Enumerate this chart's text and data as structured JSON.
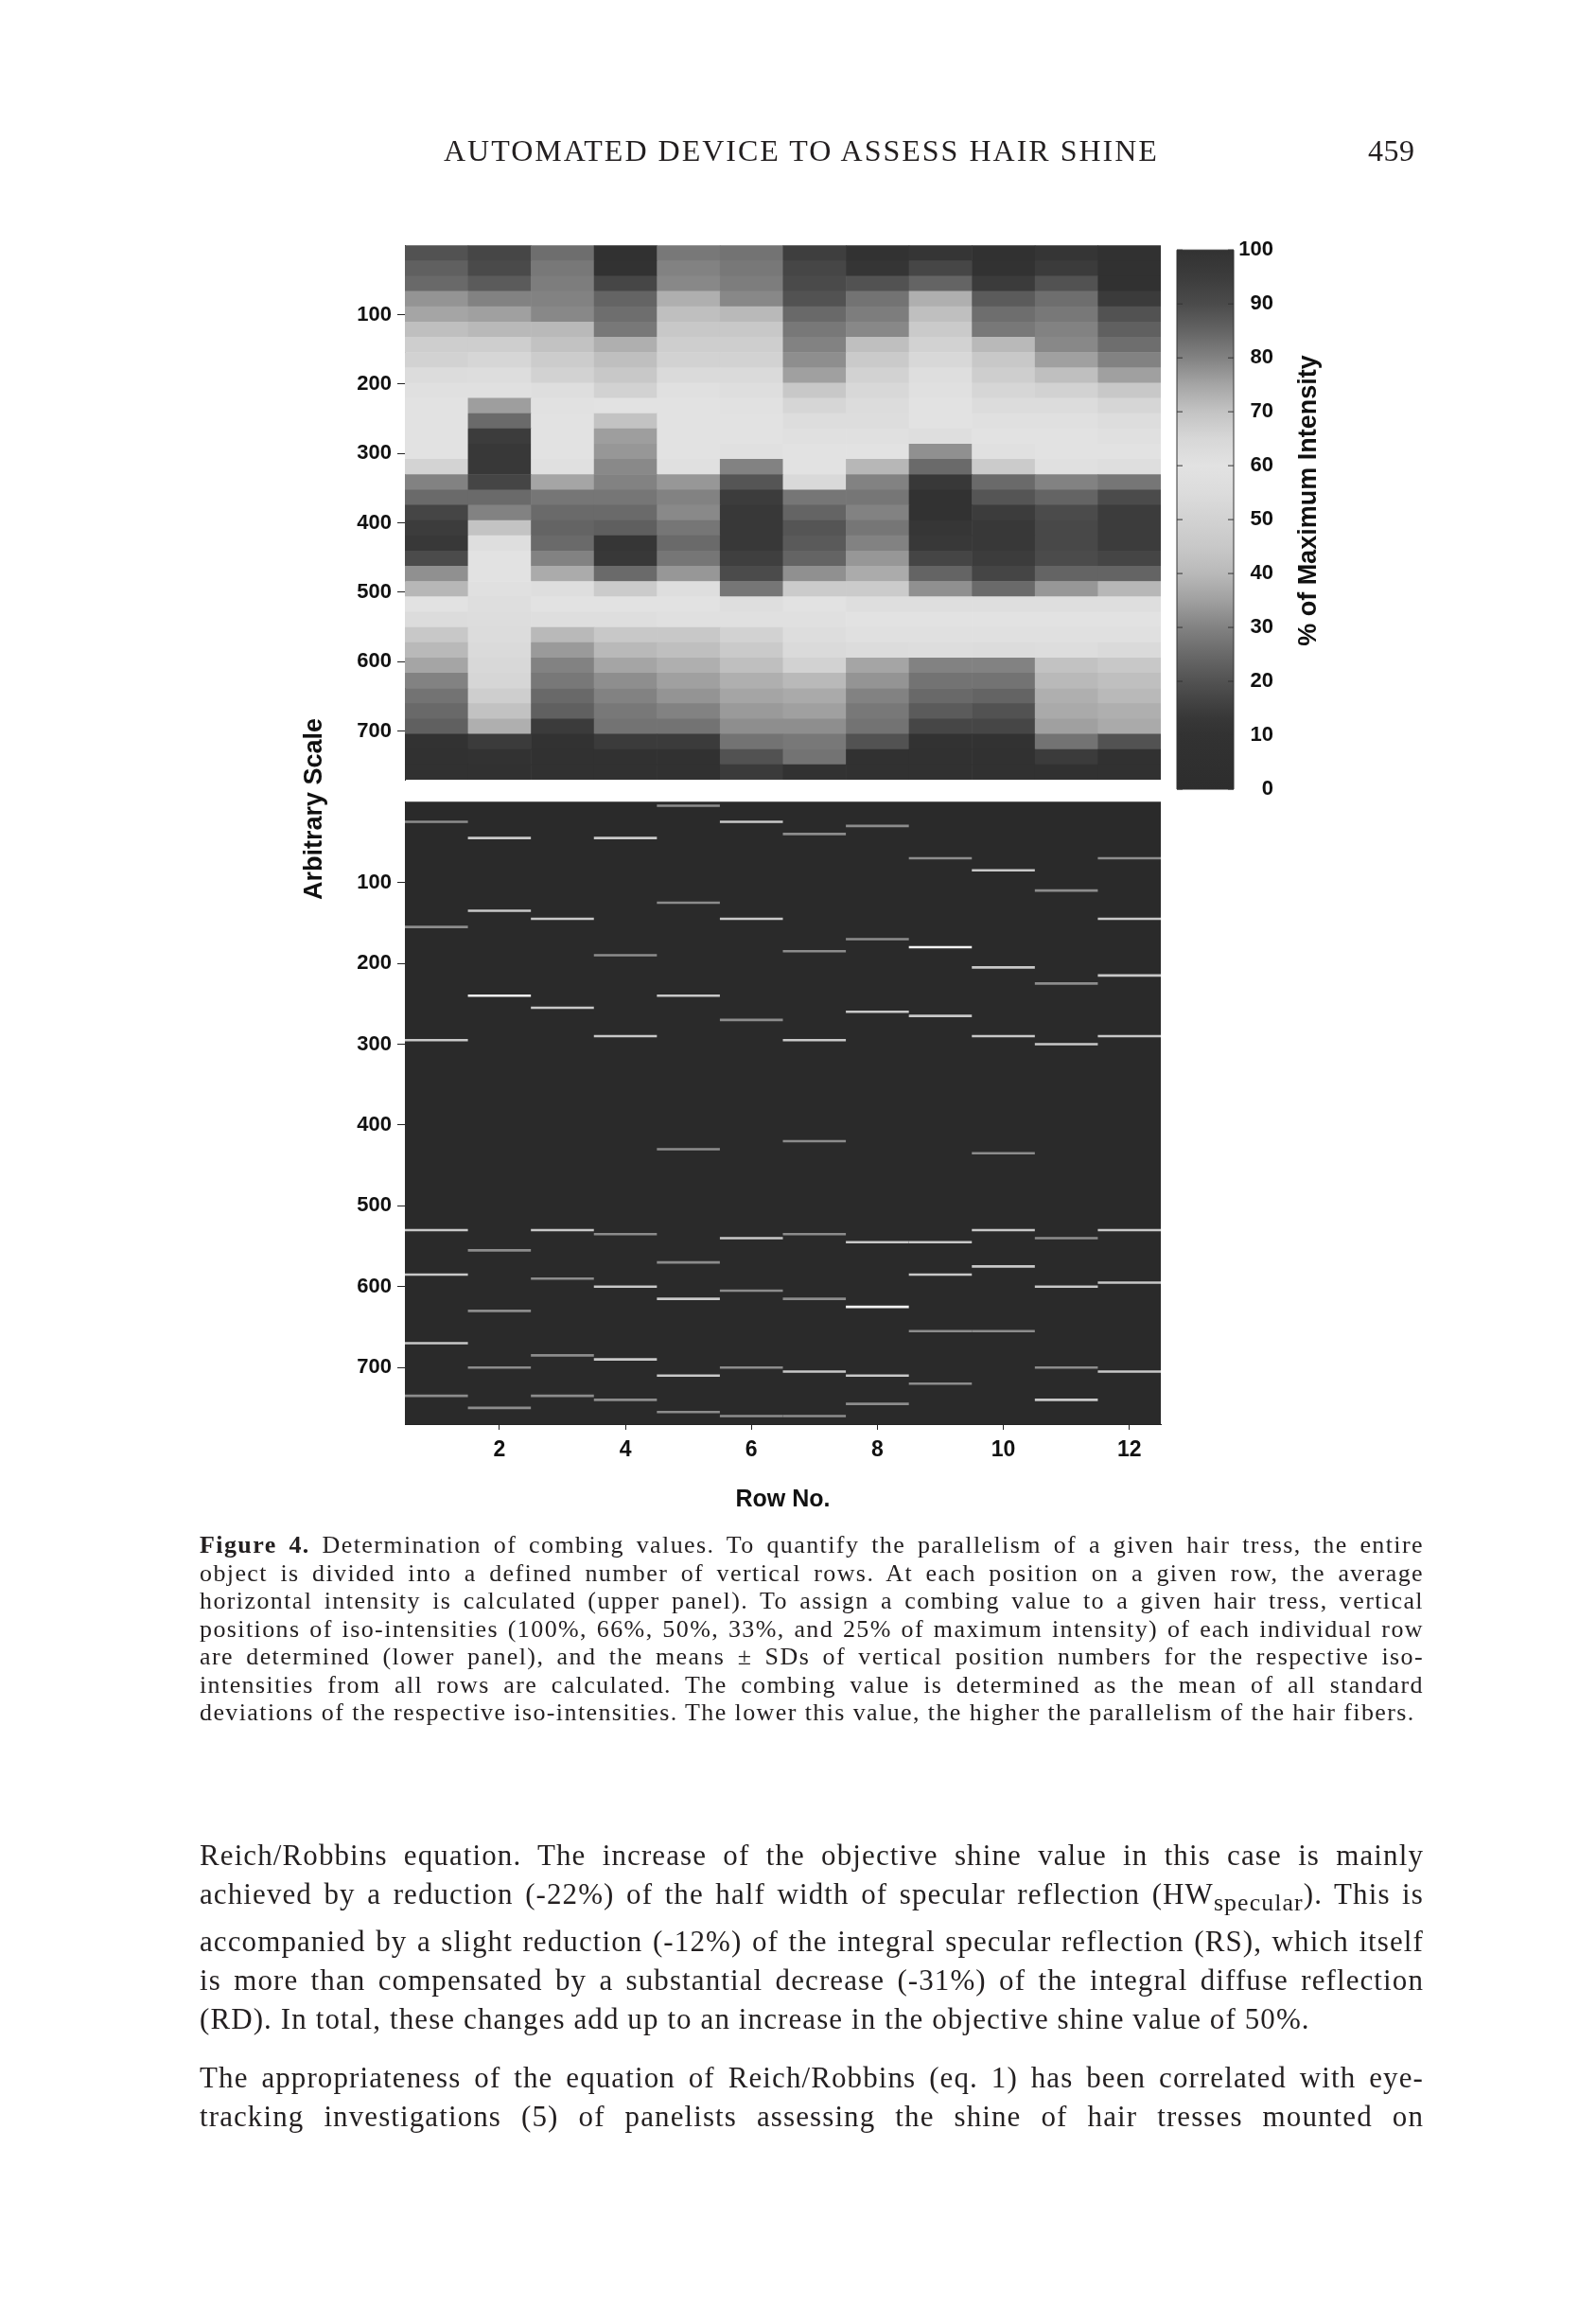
{
  "chart_data": [
    {
      "type": "heatmap",
      "categories": [
        null,
        "2",
        null,
        "4",
        null,
        "6",
        null,
        "8",
        null,
        "10",
        null,
        "12"
      ],
      "cells": [
        [
          20,
          17,
          26,
          8,
          28,
          27,
          15,
          10,
          12,
          8,
          12,
          7
        ],
        [
          23,
          18,
          28,
          10,
          30,
          28,
          17,
          12,
          17,
          9,
          14,
          7
        ],
        [
          25,
          22,
          29,
          17,
          31,
          29,
          18,
          20,
          24,
          14,
          20,
          8
        ],
        [
          33,
          30,
          30,
          24,
          38,
          31,
          20,
          27,
          38,
          22,
          26,
          14
        ],
        [
          36,
          35,
          31,
          26,
          42,
          40,
          25,
          29,
          42,
          26,
          28,
          20
        ],
        [
          42,
          40,
          40,
          28,
          45,
          45,
          28,
          31,
          46,
          28,
          30,
          23
        ],
        [
          48,
          48,
          43,
          38,
          48,
          48,
          30,
          42,
          50,
          40,
          31,
          26
        ],
        [
          50,
          52,
          47,
          42,
          50,
          50,
          32,
          46,
          53,
          45,
          35,
          30
        ],
        [
          55,
          56,
          50,
          45,
          54,
          54,
          35,
          50,
          57,
          48,
          42,
          35
        ],
        [
          58,
          58,
          57,
          50,
          58,
          57,
          45,
          53,
          58,
          52,
          50,
          45
        ],
        [
          60,
          76,
          59,
          60,
          60,
          59,
          52,
          55,
          60,
          55,
          55,
          52
        ],
        [
          60,
          84,
          60,
          70,
          60,
          60,
          56,
          56,
          60,
          58,
          58,
          56
        ],
        [
          60,
          95,
          60,
          76,
          60,
          60,
          58,
          58,
          62,
          60,
          60,
          58
        ],
        [
          60,
          97,
          60,
          77,
          60,
          61,
          60,
          60,
          78,
          61,
          60,
          60
        ],
        [
          66,
          97,
          61,
          79,
          61,
          80,
          60,
          72,
          84,
          68,
          61,
          62
        ],
        [
          80,
          92,
          75,
          80,
          77,
          88,
          64,
          80,
          97,
          84,
          80,
          82
        ],
        [
          84,
          84,
          82,
          82,
          80,
          95,
          82,
          82,
          100,
          88,
          85,
          90
        ],
        [
          92,
          80,
          84,
          84,
          79,
          97,
          85,
          80,
          100,
          95,
          90,
          95
        ],
        [
          95,
          70,
          85,
          86,
          82,
          97,
          88,
          82,
          98,
          97,
          91,
          95
        ],
        [
          97,
          62,
          84,
          98,
          84,
          97,
          87,
          80,
          97,
          97,
          91,
          95
        ],
        [
          90,
          60,
          80,
          97,
          82,
          94,
          85,
          77,
          92,
          95,
          90,
          92
        ],
        [
          78,
          60,
          74,
          84,
          77,
          90,
          78,
          74,
          85,
          92,
          85,
          85
        ],
        [
          72,
          58,
          62,
          68,
          62,
          82,
          68,
          68,
          78,
          84,
          77,
          72
        ],
        [
          60,
          57,
          60,
          60,
          60,
          62,
          60,
          62,
          62,
          62,
          62,
          62
        ],
        [
          55,
          56,
          57,
          57,
          58,
          58,
          58,
          60,
          60,
          60,
          60,
          60
        ],
        [
          45,
          55,
          40,
          45,
          45,
          50,
          56,
          58,
          58,
          58,
          58,
          58
        ],
        [
          40,
          54,
          34,
          40,
          42,
          46,
          54,
          55,
          56,
          55,
          56,
          54
        ],
        [
          36,
          53,
          30,
          36,
          38,
          42,
          50,
          36,
          30,
          30,
          43,
          45
        ],
        [
          30,
          52,
          28,
          32,
          35,
          38,
          40,
          33,
          27,
          27,
          40,
          42
        ],
        [
          27,
          48,
          25,
          30,
          33,
          36,
          37,
          30,
          25,
          24,
          38,
          40
        ],
        [
          25,
          43,
          23,
          28,
          30,
          34,
          35,
          28,
          22,
          20,
          37,
          38
        ],
        [
          23,
          38,
          14,
          27,
          27,
          32,
          32,
          27,
          17,
          17,
          35,
          37
        ],
        [
          10,
          14,
          10,
          14,
          14,
          27,
          28,
          20,
          10,
          10,
          27,
          20
        ],
        [
          8,
          10,
          8,
          8,
          8,
          20,
          27,
          8,
          8,
          8,
          14,
          8
        ],
        [
          7,
          8,
          7,
          7,
          7,
          14,
          10,
          7,
          7,
          7,
          8,
          7
        ]
      ],
      "ylim": [
        770,
        0
      ],
      "yticks": [
        100,
        200,
        300,
        400,
        500,
        600,
        700
      ],
      "clim": [
        0,
        100
      ],
      "cticks": [
        0,
        10,
        20,
        30,
        40,
        50,
        60,
        70,
        80,
        90,
        100
      ],
      "clabel": "% of Maximum Intensity",
      "tick_labels": "y",
      "annotations": [
        "AUTOMATED DEVICE TO ASSESS HAIR SHINE",
        "459"
      ]
    },
    {
      "type": "line",
      "marker": "none",
      "xlim": [
        0.5,
        12.5
      ],
      "xticks": [
        2,
        4,
        6,
        8,
        10,
        12
      ],
      "ylim": [
        770,
        0
      ],
      "yticks": [
        100,
        200,
        300,
        400,
        500,
        600,
        700
      ],
      "xlabel": "Row No.",
      "ylabel": "Arbitrary Scale",
      "series": [
        {
          "color": "#8c8c8c",
          "x": [
            0.5,
            1.5
          ],
          "values": [
            25,
            25
          ]
        },
        {
          "color": "#8c8c8c",
          "x": [
            0.5,
            1.5
          ],
          "values": [
            155,
            155
          ]
        },
        {
          "color": "#c8c8c8",
          "x": [
            0.5,
            1.5
          ],
          "values": [
            295,
            295
          ]
        },
        {
          "color": "#c8c8c8",
          "x": [
            0.5,
            1.5
          ],
          "values": [
            530,
            530
          ]
        },
        {
          "color": "#c8c8c8",
          "x": [
            0.5,
            1.5
          ],
          "values": [
            585,
            585
          ]
        },
        {
          "color": "#c8c8c8",
          "x": [
            0.5,
            1.5
          ],
          "values": [
            670,
            670
          ]
        },
        {
          "color": "#8c8c8c",
          "x": [
            0.5,
            1.5
          ],
          "values": [
            735,
            735
          ]
        },
        {
          "color": "#c8c8c8",
          "x": [
            1.5,
            2.5
          ],
          "values": [
            45,
            45
          ]
        },
        {
          "color": "#c8c8c8",
          "x": [
            1.5,
            2.5
          ],
          "values": [
            135,
            135
          ]
        },
        {
          "color": "#f2f2f2",
          "x": [
            1.5,
            2.5
          ],
          "values": [
            240,
            240
          ]
        },
        {
          "color": "#8c8c8c",
          "x": [
            1.5,
            2.5
          ],
          "values": [
            555,
            555
          ]
        },
        {
          "color": "#8c8c8c",
          "x": [
            1.5,
            2.5
          ],
          "values": [
            630,
            630
          ]
        },
        {
          "color": "#8c8c8c",
          "x": [
            1.5,
            2.5
          ],
          "values": [
            700,
            700
          ]
        },
        {
          "color": "#8c8c8c",
          "x": [
            1.5,
            2.5
          ],
          "values": [
            750,
            750
          ]
        },
        {
          "color": "#c8c8c8",
          "x": [
            2.5,
            3.5
          ],
          "values": [
            145,
            145
          ]
        },
        {
          "color": "#c8c8c8",
          "x": [
            2.5,
            3.5
          ],
          "values": [
            255,
            255
          ]
        },
        {
          "color": "#c8c8c8",
          "x": [
            2.5,
            3.5
          ],
          "values": [
            530,
            530
          ]
        },
        {
          "color": "#8c8c8c",
          "x": [
            2.5,
            3.5
          ],
          "values": [
            590,
            590
          ]
        },
        {
          "color": "#8c8c8c",
          "x": [
            2.5,
            3.5
          ],
          "values": [
            685,
            685
          ]
        },
        {
          "color": "#8c8c8c",
          "x": [
            2.5,
            3.5
          ],
          "values": [
            735,
            735
          ]
        },
        {
          "color": "#c8c8c8",
          "x": [
            3.5,
            4.5
          ],
          "values": [
            45,
            45
          ]
        },
        {
          "color": "#8c8c8c",
          "x": [
            3.5,
            4.5
          ],
          "values": [
            190,
            190
          ]
        },
        {
          "color": "#c8c8c8",
          "x": [
            3.5,
            4.5
          ],
          "values": [
            290,
            290
          ]
        },
        {
          "color": "#8c8c8c",
          "x": [
            3.5,
            4.5
          ],
          "values": [
            535,
            535
          ]
        },
        {
          "color": "#c8c8c8",
          "x": [
            3.5,
            4.5
          ],
          "values": [
            600,
            600
          ]
        },
        {
          "color": "#c8c8c8",
          "x": [
            3.5,
            4.5
          ],
          "values": [
            690,
            690
          ]
        },
        {
          "color": "#8c8c8c",
          "x": [
            3.5,
            4.5
          ],
          "values": [
            740,
            740
          ]
        },
        {
          "color": "#8c8c8c",
          "x": [
            4.5,
            5.5
          ],
          "values": [
            5,
            5
          ]
        },
        {
          "color": "#8c8c8c",
          "x": [
            4.5,
            5.5
          ],
          "values": [
            125,
            125
          ]
        },
        {
          "color": "#c8c8c8",
          "x": [
            4.5,
            5.5
          ],
          "values": [
            240,
            240
          ]
        },
        {
          "color": "#8c8c8c",
          "x": [
            4.5,
            5.5
          ],
          "values": [
            430,
            430
          ]
        },
        {
          "color": "#8c8c8c",
          "x": [
            4.5,
            5.5
          ],
          "values": [
            570,
            570
          ]
        },
        {
          "color": "#c8c8c8",
          "x": [
            4.5,
            5.5
          ],
          "values": [
            615,
            615
          ]
        },
        {
          "color": "#c8c8c8",
          "x": [
            4.5,
            5.5
          ],
          "values": [
            710,
            710
          ]
        },
        {
          "color": "#8c8c8c",
          "x": [
            4.5,
            5.5
          ],
          "values": [
            755,
            755
          ]
        },
        {
          "color": "#c8c8c8",
          "x": [
            5.5,
            6.5
          ],
          "values": [
            25,
            25
          ]
        },
        {
          "color": "#c8c8c8",
          "x": [
            5.5,
            6.5
          ],
          "values": [
            145,
            145
          ]
        },
        {
          "color": "#8c8c8c",
          "x": [
            5.5,
            6.5
          ],
          "values": [
            270,
            270
          ]
        },
        {
          "color": "#c8c8c8",
          "x": [
            5.5,
            6.5
          ],
          "values": [
            540,
            540
          ]
        },
        {
          "color": "#8c8c8c",
          "x": [
            5.5,
            6.5
          ],
          "values": [
            605,
            605
          ]
        },
        {
          "color": "#8c8c8c",
          "x": [
            5.5,
            6.5
          ],
          "values": [
            700,
            700
          ]
        },
        {
          "color": "#8c8c8c",
          "x": [
            5.5,
            6.5
          ],
          "values": [
            760,
            760
          ]
        },
        {
          "color": "#8c8c8c",
          "x": [
            6.5,
            7.5
          ],
          "values": [
            40,
            40
          ]
        },
        {
          "color": "#8c8c8c",
          "x": [
            6.5,
            7.5
          ],
          "values": [
            185,
            185
          ]
        },
        {
          "color": "#c8c8c8",
          "x": [
            6.5,
            7.5
          ],
          "values": [
            295,
            295
          ]
        },
        {
          "color": "#8c8c8c",
          "x": [
            6.5,
            7.5
          ],
          "values": [
            420,
            420
          ]
        },
        {
          "color": "#8c8c8c",
          "x": [
            6.5,
            7.5
          ],
          "values": [
            535,
            535
          ]
        },
        {
          "color": "#8c8c8c",
          "x": [
            6.5,
            7.5
          ],
          "values": [
            615,
            615
          ]
        },
        {
          "color": "#c8c8c8",
          "x": [
            6.5,
            7.5
          ],
          "values": [
            705,
            705
          ]
        },
        {
          "color": "#8c8c8c",
          "x": [
            6.5,
            7.5
          ],
          "values": [
            760,
            760
          ]
        },
        {
          "color": "#8c8c8c",
          "x": [
            7.5,
            8.5
          ],
          "values": [
            30,
            30
          ]
        },
        {
          "color": "#8c8c8c",
          "x": [
            7.5,
            8.5
          ],
          "values": [
            170,
            170
          ]
        },
        {
          "color": "#c8c8c8",
          "x": [
            7.5,
            8.5
          ],
          "values": [
            260,
            260
          ]
        },
        {
          "color": "#c8c8c8",
          "x": [
            7.5,
            8.5
          ],
          "values": [
            545,
            545
          ]
        },
        {
          "color": "#f2f2f2",
          "x": [
            7.5,
            8.5
          ],
          "values": [
            625,
            625
          ]
        },
        {
          "color": "#c8c8c8",
          "x": [
            7.5,
            8.5
          ],
          "values": [
            710,
            710
          ]
        },
        {
          "color": "#8c8c8c",
          "x": [
            7.5,
            8.5
          ],
          "values": [
            745,
            745
          ]
        },
        {
          "color": "#8c8c8c",
          "x": [
            8.5,
            9.5
          ],
          "values": [
            70,
            70
          ]
        },
        {
          "color": "#f2f2f2",
          "x": [
            8.5,
            9.5
          ],
          "values": [
            180,
            180
          ]
        },
        {
          "color": "#c8c8c8",
          "x": [
            8.5,
            9.5
          ],
          "values": [
            265,
            265
          ]
        },
        {
          "color": "#c8c8c8",
          "x": [
            8.5,
            9.5
          ],
          "values": [
            545,
            545
          ]
        },
        {
          "color": "#c8c8c8",
          "x": [
            8.5,
            9.5
          ],
          "values": [
            585,
            585
          ]
        },
        {
          "color": "#8c8c8c",
          "x": [
            8.5,
            9.5
          ],
          "values": [
            655,
            655
          ]
        },
        {
          "color": "#8c8c8c",
          "x": [
            8.5,
            9.5
          ],
          "values": [
            720,
            720
          ]
        },
        {
          "color": "#c8c8c8",
          "x": [
            9.5,
            10.5
          ],
          "values": [
            85,
            85
          ]
        },
        {
          "color": "#c8c8c8",
          "x": [
            9.5,
            10.5
          ],
          "values": [
            205,
            205
          ]
        },
        {
          "color": "#c8c8c8",
          "x": [
            9.5,
            10.5
          ],
          "values": [
            290,
            290
          ]
        },
        {
          "color": "#8c8c8c",
          "x": [
            9.5,
            10.5
          ],
          "values": [
            435,
            435
          ]
        },
        {
          "color": "#c8c8c8",
          "x": [
            9.5,
            10.5
          ],
          "values": [
            530,
            530
          ]
        },
        {
          "color": "#c8c8c8",
          "x": [
            9.5,
            10.5
          ],
          "values": [
            575,
            575
          ]
        },
        {
          "color": "#8c8c8c",
          "x": [
            9.5,
            10.5
          ],
          "values": [
            655,
            655
          ]
        },
        {
          "color": "#8c8c8c",
          "x": [
            10.5,
            11.5
          ],
          "values": [
            110,
            110
          ]
        },
        {
          "color": "#8c8c8c",
          "x": [
            10.5,
            11.5
          ],
          "values": [
            225,
            225
          ]
        },
        {
          "color": "#c8c8c8",
          "x": [
            10.5,
            11.5
          ],
          "values": [
            300,
            300
          ]
        },
        {
          "color": "#8c8c8c",
          "x": [
            10.5,
            11.5
          ],
          "values": [
            540,
            540
          ]
        },
        {
          "color": "#c8c8c8",
          "x": [
            10.5,
            11.5
          ],
          "values": [
            600,
            600
          ]
        },
        {
          "color": "#8c8c8c",
          "x": [
            10.5,
            11.5
          ],
          "values": [
            700,
            700
          ]
        },
        {
          "color": "#c8c8c8",
          "x": [
            10.5,
            11.5
          ],
          "values": [
            740,
            740
          ]
        },
        {
          "color": "#8c8c8c",
          "x": [
            11.5,
            12.5
          ],
          "values": [
            70,
            70
          ]
        },
        {
          "color": "#c8c8c8",
          "x": [
            11.5,
            12.5
          ],
          "values": [
            145,
            145
          ]
        },
        {
          "color": "#c8c8c8",
          "x": [
            11.5,
            12.5
          ],
          "values": [
            215,
            215
          ]
        },
        {
          "color": "#c8c8c8",
          "x": [
            11.5,
            12.5
          ],
          "values": [
            290,
            290
          ]
        },
        {
          "color": "#c8c8c8",
          "x": [
            11.5,
            12.5
          ],
          "values": [
            530,
            530
          ]
        },
        {
          "color": "#c8c8c8",
          "x": [
            11.5,
            12.5
          ],
          "values": [
            595,
            595
          ]
        },
        {
          "color": "#c8c8c8",
          "x": [
            11.5,
            12.5
          ],
          "values": [
            705,
            705
          ]
        }
      ],
      "annotations": [
        "Figure 4. Determination of combing values. To quantify the parallelism of a given hair tress, the entire object is divided into a defined number of vertical rows. At each position on a given row, the average horizontal intensity is calculated (upper panel). To assign a combing value to a given hair tress, vertical positions of iso-intensities (100%, 66%, 50%, 33%, and 25% of maximum intensity) of each individual row are determined (lower panel), and the means ± SDs of vertical position numbers for the respective iso-intensities from all rows are calculated. The combing value is determined as the mean of all standard deviations of the respective iso-intensities. The lower this value, the higher the parallelism of the hair fibers.",
        "Reich/Robbins equation. The increase of the objective shine value in this case is mainly achieved by a reduction (-22%) of the half width of specular reflection (HW$_{specular}$). This is accompanied by a slight reduction (-12%) of the integral specular reflection (RS), which itself is more than compensated by a substantial decrease (-31%) of the integral diffuse reflection (RD). In total, these changes add up to an increase in the objective shine value of 50%.",
        "The appropriateness of the equation of Reich/Robbins (eq. 1) has been correlated with eye-tracking investigations (5) of panelists assessing the shine of hair tresses mounted on"
      ]
    }
  ]
}
